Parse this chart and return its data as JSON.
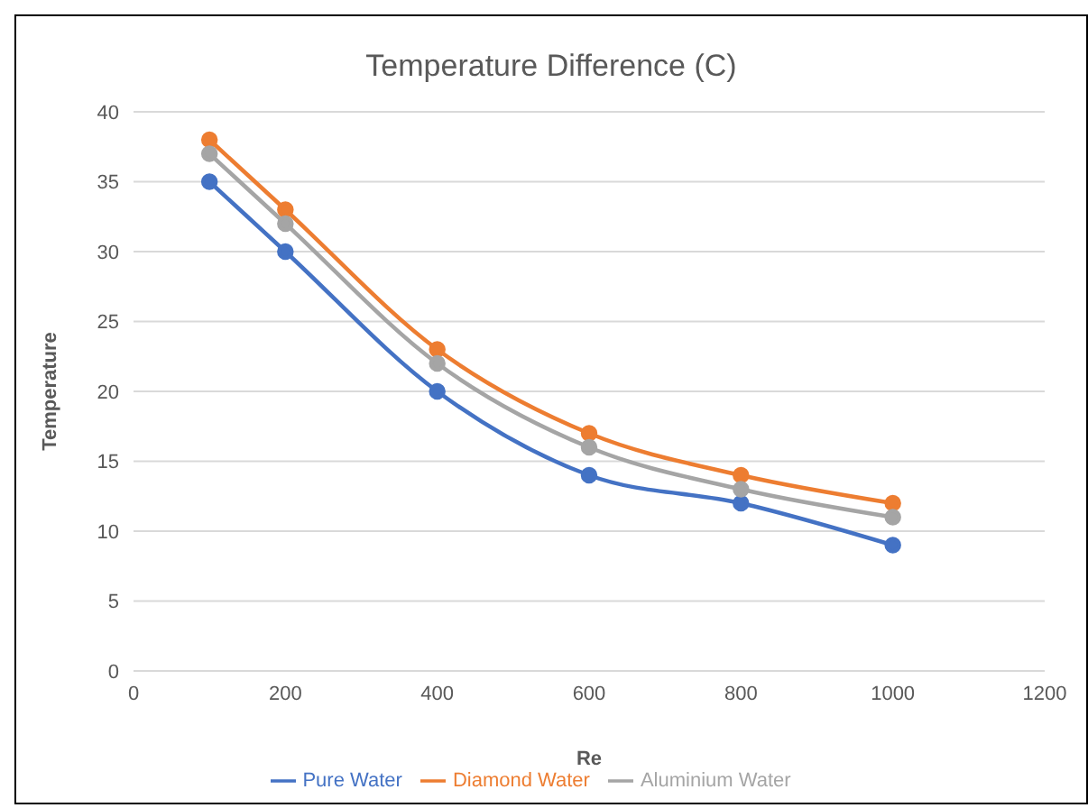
{
  "chart_data": {
    "type": "line",
    "title": "Temperature Difference (C)",
    "xlabel": "Re",
    "ylabel": "Temperature",
    "x": [
      100,
      200,
      400,
      600,
      800,
      1000
    ],
    "series": [
      {
        "name": "Pure Water",
        "color": "#4472c4",
        "values": [
          35,
          30,
          20,
          14,
          12,
          9
        ]
      },
      {
        "name": "Diamond Water",
        "color": "#ed7d31",
        "values": [
          38,
          33,
          23,
          17,
          14,
          12
        ]
      },
      {
        "name": "Aluminium Water",
        "color": "#a5a5a5",
        "values": [
          37,
          32,
          22,
          16,
          13,
          11
        ]
      }
    ],
    "xlim": [
      0,
      1200
    ],
    "xticks": [
      0,
      200,
      400,
      600,
      800,
      1000,
      1200
    ],
    "ylim": [
      0,
      40
    ],
    "yticks": [
      0,
      5,
      10,
      15,
      20,
      25,
      30,
      35,
      40
    ],
    "grid": "y",
    "legend": "bottom",
    "marker": "circle",
    "line_style": "solid"
  }
}
